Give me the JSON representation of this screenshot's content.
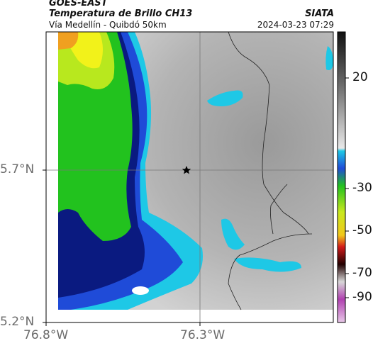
{
  "header": {
    "satellite": "GOES-EAST",
    "product": "Temperatura de Brillo CH13",
    "region": "Vía Medellín - Quibdó 50km",
    "organization": "SIATA",
    "timestamp": "2024-03-23 07:29"
  },
  "axes": {
    "lat_labels": [
      "5.7°N",
      "5.2°N"
    ],
    "lon_labels": [
      "76.8°W",
      "76.3°W"
    ]
  },
  "colorbar": {
    "tick_labels": [
      "20",
      "-30",
      "-50",
      "-70",
      "-90"
    ],
    "colors": {
      "warm_gray": "#c8c8c8",
      "cyan": "#1ec8e6",
      "blue": "#1f4bd8",
      "navy": "#0a1a80",
      "green": "#22c21e",
      "yellow": "#f2f21a",
      "orange": "#f0a020",
      "red": "#d21a1a",
      "magenta": "#b040b0"
    }
  },
  "marker": {
    "icon": "star-icon"
  }
}
